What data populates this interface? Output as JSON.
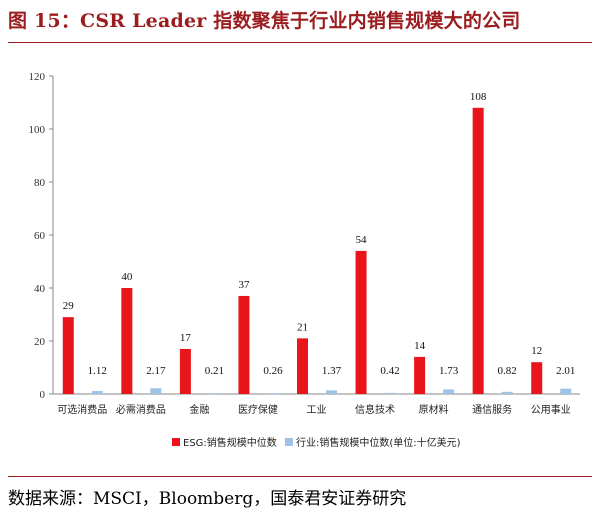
{
  "header": {
    "title": "图 15：CSR Leader 指数聚焦于行业内销售规模大的公司"
  },
  "footer": {
    "source": "数据来源：MSCI，Bloomberg，国泰君安证券研究"
  },
  "chart_data": {
    "type": "bar",
    "title": "CSR Leader 指数聚焦于行业内销售规模大的公司",
    "categories": [
      "可选消费品",
      "必需消费品",
      "金融",
      "医疗保健",
      "工业",
      "信息技术",
      "原材料",
      "通信服务",
      "公用事业"
    ],
    "series": [
      {
        "name": "ESG:销售规模中位数",
        "color": "#e8151b",
        "values": [
          29,
          40,
          17,
          37,
          21,
          54,
          14,
          108,
          12
        ],
        "labels": [
          "29",
          "40",
          "17",
          "37",
          "21",
          "54",
          "14",
          "108",
          "12"
        ]
      },
      {
        "name": "行业:销售规模中位数(单位:十亿美元)",
        "color": "#9dc3e6",
        "values": [
          1.12,
          2.17,
          0.21,
          0.26,
          1.37,
          0.42,
          1.73,
          0.82,
          2.01
        ],
        "labels": [
          "1.12",
          "2.17",
          "0.21",
          "0.26",
          "1.37",
          "0.42",
          "1.73",
          "0.82",
          "2.01"
        ]
      }
    ],
    "ylim": [
      0,
      120
    ],
    "yticks": [
      "0",
      "20",
      "40",
      "60",
      "80",
      "100",
      "120"
    ],
    "grid": false,
    "legend": "bottom-center",
    "xlabel": "",
    "ylabel": ""
  }
}
